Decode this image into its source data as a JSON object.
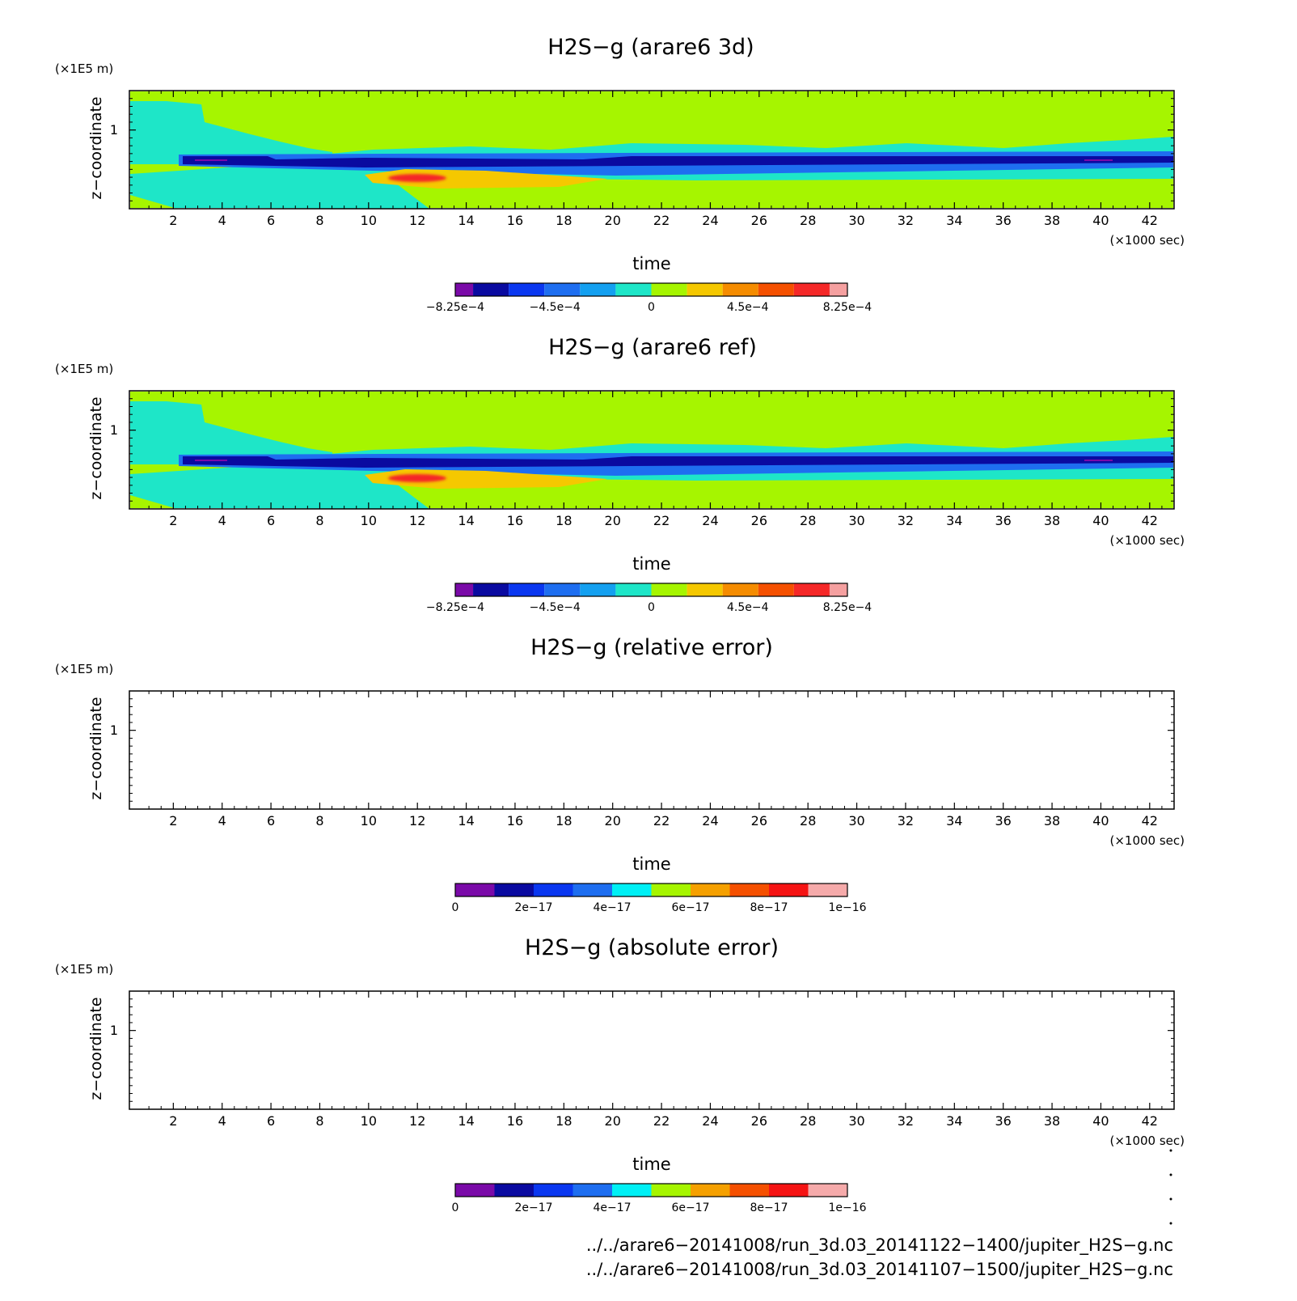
{
  "chart_data": [
    {
      "type": "heatmap",
      "id": "p1",
      "title": "H2S−g (arare6 3d)",
      "xlabel": "time",
      "x_unit": "(×1000 sec)",
      "ylabel": "z−coordinate",
      "y_unit": "(×1E5 m)",
      "xlim": [
        0.2,
        43
      ],
      "ylim": [
        0.5,
        1.25
      ],
      "x_ticks": [
        "2",
        "4",
        "6",
        "8",
        "10",
        "12",
        "14",
        "16",
        "18",
        "20",
        "22",
        "24",
        "26",
        "28",
        "30",
        "32",
        "34",
        "36",
        "38",
        "40",
        "42"
      ],
      "y_ticks": [
        "1"
      ],
      "colorbar": {
        "colors": [
          "#7a0aa8",
          "#0a0aa0",
          "#0a37f0",
          "#1e6ef0",
          "#14a0f0",
          "#1ee6c8",
          "#a6f500",
          "#f5c800",
          "#f58c00",
          "#f55000",
          "#f52828",
          "#f5a0a0"
        ],
        "tick_labels": [
          "−8.25e−4",
          "−4.5e−4",
          "0",
          "4.5e−4",
          "8.25e−4"
        ]
      },
      "field_features": [
        {
          "name": "background",
          "value": 7.5e-05
        },
        {
          "name": "upper cyan tongue",
          "x_range": [
            0.2,
            6
          ],
          "value": -7.5e-05
        },
        {
          "name": "deep blue band",
          "y": 0.82,
          "x_range": [
            2.5,
            43
          ],
          "value": -0.00045
        },
        {
          "name": "cyan layer",
          "y_range": [
            0.7,
            0.8
          ],
          "value": -7.5e-05
        },
        {
          "name": "red core",
          "x": 12,
          "y": 0.71,
          "value": 0.00045
        },
        {
          "name": "orange band",
          "x_range": [
            10,
            20
          ],
          "y_range": [
            0.68,
            0.76
          ],
          "value": 0.000225
        }
      ]
    },
    {
      "type": "heatmap",
      "id": "p2",
      "title": "H2S−g (arare6 ref)",
      "xlabel": "time",
      "x_unit": "(×1000 sec)",
      "ylabel": "z−coordinate",
      "y_unit": "(×1E5 m)",
      "xlim": [
        0.2,
        43
      ],
      "ylim": [
        0.5,
        1.25
      ],
      "x_ticks": [
        "2",
        "4",
        "6",
        "8",
        "10",
        "12",
        "14",
        "16",
        "18",
        "20",
        "22",
        "24",
        "26",
        "28",
        "30",
        "32",
        "34",
        "36",
        "38",
        "40",
        "42"
      ],
      "y_ticks": [
        "1"
      ],
      "colorbar": {
        "colors": [
          "#7a0aa8",
          "#0a0aa0",
          "#0a37f0",
          "#1e6ef0",
          "#14a0f0",
          "#1ee6c8",
          "#a6f500",
          "#f5c800",
          "#f58c00",
          "#f55000",
          "#f52828",
          "#f5a0a0"
        ],
        "tick_labels": [
          "−8.25e−4",
          "−4.5e−4",
          "0",
          "4.5e−4",
          "8.25e−4"
        ]
      },
      "field_features": [
        {
          "name": "background",
          "value": 7.5e-05
        },
        {
          "name": "upper cyan tongue",
          "x_range": [
            0.2,
            6
          ],
          "value": -7.5e-05
        },
        {
          "name": "deep blue band",
          "y": 0.82,
          "x_range": [
            2.5,
            43
          ],
          "value": -0.00045
        },
        {
          "name": "cyan layer",
          "y_range": [
            0.7,
            0.8
          ],
          "value": -7.5e-05
        },
        {
          "name": "red core",
          "x": 12,
          "y": 0.71,
          "value": 0.00045
        },
        {
          "name": "orange band",
          "x_range": [
            10,
            20
          ],
          "y_range": [
            0.68,
            0.76
          ],
          "value": 0.000225
        }
      ]
    },
    {
      "type": "heatmap",
      "id": "p3",
      "title": "H2S−g (relative error)",
      "xlabel": "time",
      "x_unit": "(×1000 sec)",
      "ylabel": "z−coordinate",
      "y_unit": "(×1E5 m)",
      "xlim": [
        0.2,
        43
      ],
      "ylim": [
        0.5,
        1.25
      ],
      "x_ticks": [
        "2",
        "4",
        "6",
        "8",
        "10",
        "12",
        "14",
        "16",
        "18",
        "20",
        "22",
        "24",
        "26",
        "28",
        "30",
        "32",
        "34",
        "36",
        "38",
        "40",
        "42"
      ],
      "y_ticks": [
        "1"
      ],
      "colorbar": {
        "colors": [
          "#7a0aa8",
          "#0a0aa0",
          "#0a37f0",
          "#1e6ef0",
          "#00f0f5",
          "#a6f500",
          "#f5a000",
          "#f55000",
          "#f51414",
          "#f5aaaa"
        ],
        "tick_labels": [
          "0",
          "2e−17",
          "4e−17",
          "6e−17",
          "8e−17",
          "1e−16"
        ]
      },
      "field_features": []
    },
    {
      "type": "heatmap",
      "id": "p4",
      "title": "H2S−g (absolute error)",
      "xlabel": "time",
      "x_unit": "(×1000 sec)",
      "ylabel": "z−coordinate",
      "y_unit": "(×1E5 m)",
      "xlim": [
        0.2,
        43
      ],
      "ylim": [
        0.5,
        1.25
      ],
      "x_ticks": [
        "2",
        "4",
        "6",
        "8",
        "10",
        "12",
        "14",
        "16",
        "18",
        "20",
        "22",
        "24",
        "26",
        "28",
        "30",
        "32",
        "34",
        "36",
        "38",
        "40",
        "42"
      ],
      "y_ticks": [
        "1"
      ],
      "colorbar": {
        "colors": [
          "#7a0aa8",
          "#0a0aa0",
          "#0a37f0",
          "#1e6ef0",
          "#00f0f5",
          "#a6f500",
          "#f5a000",
          "#f55000",
          "#f51414",
          "#f5aaaa"
        ],
        "tick_labels": [
          "0",
          "2e−17",
          "4e−17",
          "6e−17",
          "8e−17",
          "1e−16"
        ]
      },
      "field_features": []
    }
  ],
  "footer": {
    "line1": "../../arare6−20141008/run_3d.03_20141122−1400/jupiter_H2S−g.nc",
    "line2": "../../arare6−20141008/run_3d.03_20141107−1500/jupiter_H2S−g.nc"
  }
}
